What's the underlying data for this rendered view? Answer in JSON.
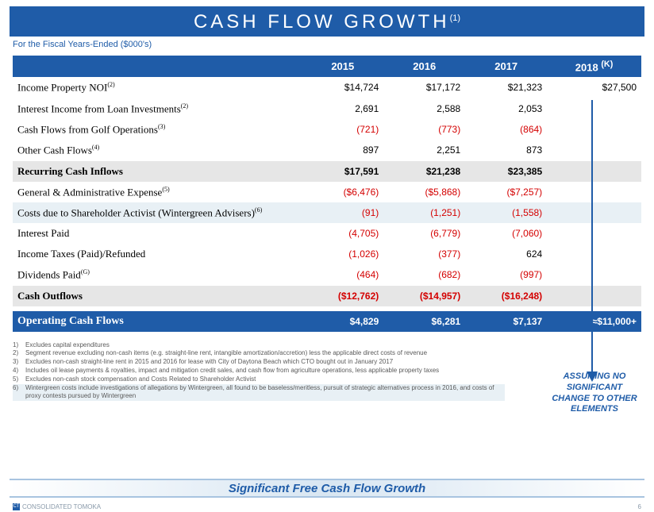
{
  "title": "CASH FLOW GROWTH",
  "title_sup": "(1)",
  "subtitle": "For the Fiscal Years-Ended  ($000's)",
  "colors": {
    "primary": "#1f5ca8",
    "negative": "#d40000",
    "row_grey": "#e6e6e6",
    "row_lightblue": "#e8f0f5",
    "background": "#ffffff"
  },
  "table": {
    "headers": [
      "",
      "2015",
      "2016",
      "2017",
      "2018 "
    ],
    "header_sup_last": "(K)",
    "rows": [
      {
        "label": "Income Property NOI",
        "sup": "(2)",
        "cells": [
          "$14,724",
          "$17,172",
          "$21,323",
          "$27,500"
        ],
        "neg": [
          false,
          false,
          false,
          false
        ],
        "style": ""
      },
      {
        "label": "Interest Income from Loan Investments",
        "sup": "(2)",
        "cells": [
          "2,691",
          "2,588",
          "2,053",
          ""
        ],
        "neg": [
          false,
          false,
          false,
          false
        ],
        "style": ""
      },
      {
        "label": "Cash Flows from Golf Operations",
        "sup": "(3)",
        "cells": [
          "(721)",
          "(773)",
          "(864)",
          ""
        ],
        "neg": [
          true,
          true,
          true,
          false
        ],
        "style": ""
      },
      {
        "label": "Other Cash Flows",
        "sup": "(4)",
        "cells": [
          "897",
          "2,251",
          "873",
          ""
        ],
        "neg": [
          false,
          false,
          false,
          false
        ],
        "style": ""
      },
      {
        "label": "Recurring Cash Inflows",
        "sup": "",
        "cells": [
          "$17,591",
          "$21,238",
          "$23,385",
          ""
        ],
        "neg": [
          false,
          false,
          false,
          false
        ],
        "style": "row-grey"
      },
      {
        "label": "General & Administrative Expense",
        "sup": "(5)",
        "cells": [
          "($6,476)",
          "($5,868)",
          "($7,257)",
          ""
        ],
        "neg": [
          true,
          true,
          true,
          false
        ],
        "style": ""
      },
      {
        "label": "Costs due to Shareholder Activist (Wintergreen Advisers)",
        "sup": "(6)",
        "cells": [
          "(91)",
          "(1,251)",
          "(1,558)",
          ""
        ],
        "neg": [
          true,
          true,
          true,
          false
        ],
        "style": "row-lightblue"
      },
      {
        "label": "Interest Paid",
        "sup": "",
        "cells": [
          "(4,705)",
          "(6,779)",
          "(7,060)",
          ""
        ],
        "neg": [
          true,
          true,
          true,
          false
        ],
        "style": ""
      },
      {
        "label": "Income Taxes (Paid)/Refunded",
        "sup": "",
        "cells": [
          "(1,026)",
          "(377)",
          "624",
          ""
        ],
        "neg": [
          true,
          true,
          false,
          false
        ],
        "style": ""
      },
      {
        "label": "Dividends Paid",
        "sup": "(G)",
        "cells": [
          "(464)",
          "(682)",
          "(997)",
          ""
        ],
        "neg": [
          true,
          true,
          true,
          false
        ],
        "style": ""
      },
      {
        "label": "Cash Outflows",
        "sup": "",
        "cells": [
          "($12,762)",
          "($14,957)",
          "($16,248)",
          ""
        ],
        "neg": [
          true,
          true,
          true,
          false
        ],
        "style": "row-grey"
      }
    ],
    "total_row": {
      "label": "Operating Cash Flows",
      "cells": [
        "$4,829",
        "$6,281",
        "$7,137",
        "≈$11,000+"
      ]
    }
  },
  "assumption": "ASSUMING NO SIGNIFICANT CHANGE TO OTHER ELEMENTS",
  "footnotes": [
    {
      "n": "1)",
      "t": "Excludes capital expenditures",
      "hl": false
    },
    {
      "n": "2)",
      "t": "Segment revenue excluding non-cash items (e.g. straight-line rent, intangible amortization/accretion) less the applicable direct costs of revenue",
      "hl": false
    },
    {
      "n": "3)",
      "t": "Excludes non-cash straight-line rent in 2015 and 2016 for lease with City of Daytona Beach which CTO bought out in January 2017",
      "hl": false
    },
    {
      "n": "4)",
      "t": "Includes oil lease payments & royalties, impact and mitigation credit sales, and cash flow from agriculture operations, less applicable property taxes",
      "hl": false
    },
    {
      "n": "5)",
      "t": "Excludes non-cash stock compensation and Costs Related to Shareholder Activist",
      "hl": false
    },
    {
      "n": "6)",
      "t": "Wintergreen costs include investigations of allegations by Wintergreen, all found to be baseless/meritless, pursuit of strategic alternatives process in 2016, and costs of proxy contests pursued by Wintergreen",
      "hl": true
    }
  ],
  "bottom_strip": "Significant Free Cash Flow Growth",
  "footer_company": "CONSOLIDATED TOMOKA",
  "footer_page": "6"
}
